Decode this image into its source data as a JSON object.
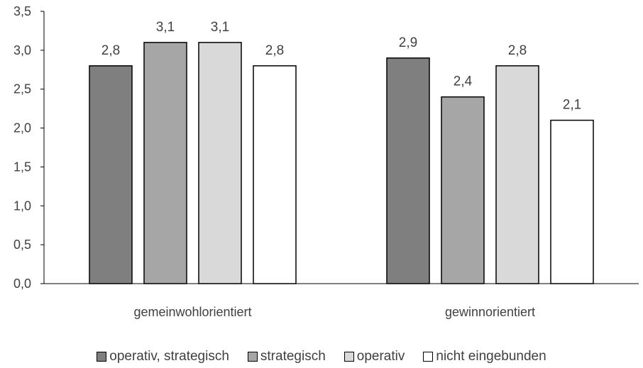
{
  "chart_data": {
    "type": "bar",
    "categories": [
      "gemeinwohlorientiert",
      "gewinnorientiert"
    ],
    "series": [
      {
        "name": "operativ, strategisch",
        "color": "#7f7f7f",
        "values": [
          2.8,
          2.9
        ],
        "labels": [
          "2,8",
          "2,9"
        ]
      },
      {
        "name": "strategisch",
        "color": "#a6a6a6",
        "values": [
          3.1,
          2.4
        ],
        "labels": [
          "3,1",
          "2,4"
        ]
      },
      {
        "name": "operativ",
        "color": "#d9d9d9",
        "values": [
          3.1,
          2.8
        ],
        "labels": [
          "3,1",
          "2,8"
        ]
      },
      {
        "name": "nicht eingebunden",
        "color": "#ffffff",
        "values": [
          2.8,
          2.1
        ],
        "labels": [
          "2,8",
          "2,1"
        ]
      }
    ],
    "ylim": [
      0,
      3.5
    ],
    "yticks": [
      0,
      0.5,
      1,
      1.5,
      2,
      2.5,
      3,
      3.5
    ],
    "ytick_labels": [
      "0,0",
      "0,5",
      "1,0",
      "1,5",
      "2,0",
      "2,5",
      "3,0",
      "3,5"
    ],
    "legend_position": "bottom",
    "grid": false
  }
}
